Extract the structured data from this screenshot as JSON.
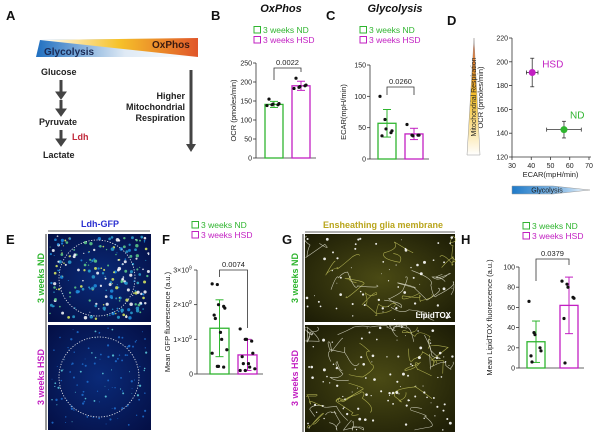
{
  "colors": {
    "nd": "#2fb52f",
    "hsd": "#c21fc2",
    "ldh": "#c0283a",
    "gfp_title": "#2a2fd0",
    "glia_title": "#b9a51c"
  },
  "panels": {
    "A": {
      "label": "A",
      "glycolysis": "Glycolysis",
      "oxphos": "OxPhos",
      "glucose": "Glucose",
      "pyruvate": "Pyruvate",
      "ldh": "Ldh",
      "lactate": "Lactate",
      "higher": "Higher",
      "mito": "Mitochondrial",
      "resp": "Respiration"
    },
    "B": {
      "label": "B"
    },
    "C": {
      "label": "C"
    },
    "D": {
      "label": "D"
    },
    "E": {
      "label": "E",
      "title": "Ldh-GFP",
      "row_nd": "3 weeks ND",
      "row_hsd": "3 weeks HSD"
    },
    "F": {
      "label": "F"
    },
    "G": {
      "label": "G",
      "title": "Ensheathing glia membrane",
      "row_nd": "3 weeks ND",
      "row_hsd": "3 weeks HSD",
      "stain": "LipidTOX"
    },
    "H": {
      "label": "H"
    }
  },
  "chart_data": [
    {
      "id": "B",
      "type": "bar",
      "title": "OxPhos",
      "ylabel": "OCR (pmoles/min)",
      "ylim": [
        0,
        250
      ],
      "yticks": [
        "0",
        "50",
        "100",
        "150",
        "200",
        "250"
      ],
      "ytick_values": [
        0,
        50,
        100,
        150,
        200,
        250
      ],
      "legend": [
        "3 weeks ND",
        "3 weeks HSD"
      ],
      "pvalue": "0.0022",
      "series": [
        {
          "name": "3 weeks ND",
          "mean": 141,
          "err": 8,
          "points": [
            138,
            140,
            142,
            140,
            143,
            155
          ]
        },
        {
          "name": "3 weeks HSD",
          "mean": 190,
          "err": 12,
          "points": [
            183,
            186,
            188,
            190,
            192,
            210
          ]
        }
      ]
    },
    {
      "id": "C",
      "type": "bar",
      "title": "Glycolysis",
      "ylabel": "ECAR(mpH/min)",
      "ylim": [
        0,
        150
      ],
      "yticks": [
        "0",
        "50",
        "100",
        "150"
      ],
      "ytick_values": [
        0,
        50,
        100,
        150
      ],
      "legend": [
        "3 weeks ND",
        "3 weeks HSD"
      ],
      "pvalue": "0.0260",
      "series": [
        {
          "name": "3 weeks ND",
          "mean": 57,
          "err": 22,
          "points": [
            100,
            63,
            48,
            42,
            45,
            37
          ]
        },
        {
          "name": "3 weeks HSD",
          "mean": 40,
          "err": 9,
          "points": [
            55,
            38,
            37,
            38,
            38
          ]
        }
      ]
    },
    {
      "id": "D",
      "type": "scatter",
      "xlabel": "ECAR(mpH/min)",
      "ylabel": "OCR (pmoles/min)",
      "xlim": [
        30,
        70
      ],
      "ylim": [
        120,
        220
      ],
      "xticks": [
        "30",
        "40",
        "50",
        "60",
        "70"
      ],
      "xtick_values": [
        30,
        40,
        50,
        60,
        70
      ],
      "yticks": [
        "120",
        "140",
        "160",
        "180",
        "200",
        "220"
      ],
      "ytick_values": [
        120,
        140,
        160,
        180,
        200,
        220
      ],
      "y_arrow_label": "Mitochondrial Respiration",
      "x_arrow_label": "Glycolysis",
      "points": [
        {
          "name": "HSD",
          "x": 40.5,
          "y": 191,
          "xerr": 3,
          "yerr": 12
        },
        {
          "name": "ND",
          "x": 57,
          "y": 143,
          "xerr": 9,
          "yerr": 7
        }
      ]
    },
    {
      "id": "F",
      "type": "bar",
      "ylabel": "Mean GFP fluorescence (a.u.)",
      "ylim": [
        0,
        3
      ],
      "yunit": "×10^9",
      "yticks": [
        "0",
        "1×10",
        "2×10",
        "3×10"
      ],
      "ytick_exp": "9",
      "ytick_values": [
        0,
        1,
        2,
        3
      ],
      "legend": [
        "3 weeks ND",
        "3 weeks HSD"
      ],
      "pvalue": "0.0074",
      "series": [
        {
          "name": "3 weeks ND",
          "mean": 1.32,
          "err": 0.82,
          "points": [
            2.6,
            2.58,
            2.0,
            1.95,
            1.9,
            1.7,
            1.6,
            1.2,
            1.0,
            0.7,
            0.6,
            0.22,
            0.22,
            0.2
          ]
        },
        {
          "name": "3 weeks HSD",
          "mean": 0.55,
          "err": 0.45,
          "points": [
            1.3,
            1.0,
            1.0,
            0.95,
            0.6,
            0.5,
            0.3,
            0.3,
            0.2,
            0.15,
            0.1,
            0.1
          ]
        }
      ]
    },
    {
      "id": "H",
      "type": "bar",
      "ylabel": "Mean LipidTOX fluorescence (a.u.)",
      "ylim": [
        0,
        100
      ],
      "yticks": [
        "0",
        "20",
        "40",
        "60",
        "80",
        "100"
      ],
      "ytick_values": [
        0,
        20,
        40,
        60,
        80,
        100
      ],
      "legend": [
        "3 weeks ND",
        "3 weeks HSD"
      ],
      "pvalue": "0.0379",
      "series": [
        {
          "name": "3 weeks ND",
          "mean": 26,
          "err": 20.5,
          "points": [
            66,
            35,
            33,
            20,
            17,
            12,
            6
          ]
        },
        {
          "name": "3 weeks HSD",
          "mean": 62,
          "err": 28,
          "points": [
            86,
            83,
            80,
            70,
            69,
            49,
            5
          ]
        }
      ]
    }
  ]
}
